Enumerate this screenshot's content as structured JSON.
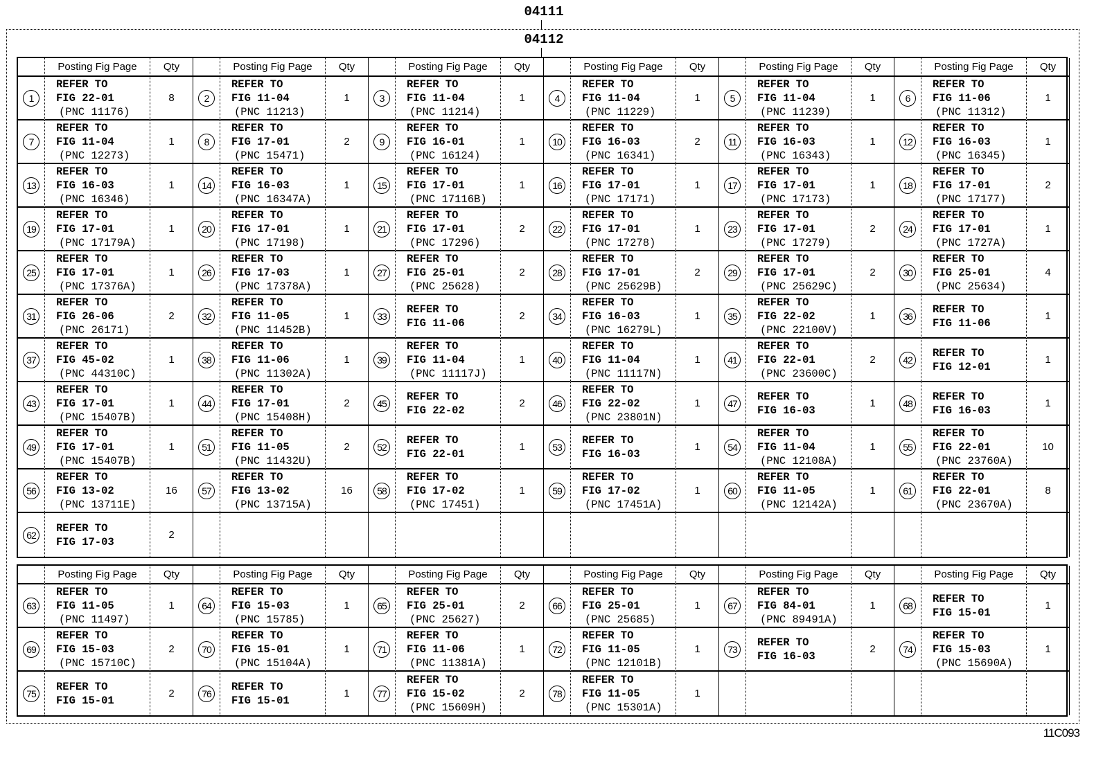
{
  "codes": {
    "outer": "04111",
    "inner": "04112"
  },
  "footer_id": "11C093",
  "header": {
    "posting": "Posting Fig Page",
    "qty": "Qty"
  },
  "refer_label": "REFER TO",
  "upper_table": [
    {
      "no": "1",
      "fig": "FIG 22-01",
      "pnc": "(PNC 11176)",
      "qty": "8"
    },
    {
      "no": "2",
      "fig": "FIG 11-04",
      "pnc": "(PNC 11213)",
      "qty": "1"
    },
    {
      "no": "3",
      "fig": "FIG 11-04",
      "pnc": "(PNC 11214)",
      "qty": "1"
    },
    {
      "no": "4",
      "fig": "FIG 11-04",
      "pnc": "(PNC 11229)",
      "qty": "1"
    },
    {
      "no": "5",
      "fig": "FIG 11-04",
      "pnc": "(PNC 11239)",
      "qty": "1"
    },
    {
      "no": "6",
      "fig": "FIG 11-06",
      "pnc": "(PNC 11312)",
      "qty": "1"
    },
    {
      "no": "7",
      "fig": "FIG 11-04",
      "pnc": "(PNC 12273)",
      "qty": "1"
    },
    {
      "no": "8",
      "fig": "FIG 17-01",
      "pnc": "(PNC 15471)",
      "qty": "2"
    },
    {
      "no": "9",
      "fig": "FIG 16-01",
      "pnc": "(PNC 16124)",
      "qty": "1"
    },
    {
      "no": "10",
      "fig": "FIG 16-03",
      "pnc": "(PNC 16341)",
      "qty": "2"
    },
    {
      "no": "11",
      "fig": "FIG 16-03",
      "pnc": "(PNC 16343)",
      "qty": "1"
    },
    {
      "no": "12",
      "fig": "FIG 16-03",
      "pnc": "(PNC 16345)",
      "qty": "1"
    },
    {
      "no": "13",
      "fig": "FIG 16-03",
      "pnc": "(PNC 16346)",
      "qty": "1"
    },
    {
      "no": "14",
      "fig": "FIG 16-03",
      "pnc": "(PNC 16347A)",
      "qty": "1"
    },
    {
      "no": "15",
      "fig": "FIG 17-01",
      "pnc": "(PNC 17116B)",
      "qty": "1"
    },
    {
      "no": "16",
      "fig": "FIG 17-01",
      "pnc": "(PNC 17171)",
      "qty": "1"
    },
    {
      "no": "17",
      "fig": "FIG 17-01",
      "pnc": "(PNC 17173)",
      "qty": "1"
    },
    {
      "no": "18",
      "fig": "FIG 17-01",
      "pnc": "(PNC 17177)",
      "qty": "2"
    },
    {
      "no": "19",
      "fig": "FIG 17-01",
      "pnc": "(PNC 17179A)",
      "qty": "1"
    },
    {
      "no": "20",
      "fig": "FIG 17-01",
      "pnc": "(PNC 17198)",
      "qty": "1"
    },
    {
      "no": "21",
      "fig": "FIG 17-01",
      "pnc": "(PNC 17296)",
      "qty": "2"
    },
    {
      "no": "22",
      "fig": "FIG 17-01",
      "pnc": "(PNC 17278)",
      "qty": "1"
    },
    {
      "no": "23",
      "fig": "FIG 17-01",
      "pnc": "(PNC 17279)",
      "qty": "2"
    },
    {
      "no": "24",
      "fig": "FIG 17-01",
      "pnc": "(PNC 1727A)",
      "qty": "1"
    },
    {
      "no": "25",
      "fig": "FIG 17-01",
      "pnc": "(PNC 17376A)",
      "qty": "1"
    },
    {
      "no": "26",
      "fig": "FIG 17-03",
      "pnc": "(PNC 17378A)",
      "qty": "1"
    },
    {
      "no": "27",
      "fig": "FIG 25-01",
      "pnc": "(PNC 25628)",
      "qty": "2"
    },
    {
      "no": "28",
      "fig": "FIG 17-01",
      "pnc": "(PNC 25629B)",
      "qty": "2"
    },
    {
      "no": "29",
      "fig": "FIG 17-01",
      "pnc": "(PNC 25629C)",
      "qty": "2"
    },
    {
      "no": "30",
      "fig": "FIG 25-01",
      "pnc": "(PNC 25634)",
      "qty": "4"
    },
    {
      "no": "31",
      "fig": "FIG 26-06",
      "pnc": "(PNC 26171)",
      "qty": "2"
    },
    {
      "no": "32",
      "fig": "FIG 11-05",
      "pnc": "(PNC 11452B)",
      "qty": "1"
    },
    {
      "no": "33",
      "fig": "FIG 11-06",
      "pnc": "",
      "qty": "2"
    },
    {
      "no": "34",
      "fig": "FIG 16-03",
      "pnc": "(PNC 16279L)",
      "qty": "1"
    },
    {
      "no": "35",
      "fig": "FIG 22-02",
      "pnc": "(PNC 22100V)",
      "qty": "1"
    },
    {
      "no": "36",
      "fig": "FIG 11-06",
      "pnc": "",
      "qty": "1"
    },
    {
      "no": "37",
      "fig": "FIG 45-02",
      "pnc": "(PNC 44310C)",
      "qty": "1"
    },
    {
      "no": "38",
      "fig": "FIG 11-06",
      "pnc": "(PNC 11302A)",
      "qty": "1"
    },
    {
      "no": "39",
      "fig": "FIG 11-04",
      "pnc": "(PNC 11117J)",
      "qty": "1"
    },
    {
      "no": "40",
      "fig": "FIG 11-04",
      "pnc": "(PNC 11117N)",
      "qty": "1"
    },
    {
      "no": "41",
      "fig": "FIG 22-01",
      "pnc": "(PNC 23600C)",
      "qty": "2"
    },
    {
      "no": "42",
      "fig": "FIG 12-01",
      "pnc": "",
      "qty": "1"
    },
    {
      "no": "43",
      "fig": "FIG 17-01",
      "pnc": "(PNC 15407B)",
      "qty": "1"
    },
    {
      "no": "44",
      "fig": "FIG 17-01",
      "pnc": "(PNC 15408H)",
      "qty": "2"
    },
    {
      "no": "45",
      "fig": "FIG 22-02",
      "pnc": "",
      "qty": "2"
    },
    {
      "no": "46",
      "fig": "FIG 22-02",
      "pnc": "(PNC 23801N)",
      "qty": "1"
    },
    {
      "no": "47",
      "fig": "FIG 16-03",
      "pnc": "",
      "qty": "1"
    },
    {
      "no": "48",
      "fig": "FIG 16-03",
      "pnc": "",
      "qty": "1"
    },
    {
      "no": "49",
      "fig": "FIG 17-01",
      "pnc": "(PNC 15407B)",
      "qty": "1"
    },
    {
      "no": "51",
      "fig": "FIG 11-05",
      "pnc": "(PNC 11432U)",
      "qty": "2"
    },
    {
      "no": "52",
      "fig": "FIG 22-01",
      "pnc": "",
      "qty": "1"
    },
    {
      "no": "53",
      "fig": "FIG 16-03",
      "pnc": "",
      "qty": "1"
    },
    {
      "no": "54",
      "fig": "FIG 11-04",
      "pnc": "(PNC 12108A)",
      "qty": "1"
    },
    {
      "no": "55",
      "fig": "FIG 22-01",
      "pnc": "(PNC 23760A)",
      "qty": "10"
    },
    {
      "no": "56",
      "fig": "FIG 13-02",
      "pnc": "(PNC 13711E)",
      "qty": "16"
    },
    {
      "no": "57",
      "fig": "FIG 13-02",
      "pnc": "(PNC 13715A)",
      "qty": "16"
    },
    {
      "no": "58",
      "fig": "FIG 17-02",
      "pnc": "(PNC 17451)",
      "qty": "1"
    },
    {
      "no": "59",
      "fig": "FIG 17-02",
      "pnc": "(PNC 17451A)",
      "qty": "1"
    },
    {
      "no": "60",
      "fig": "FIG 11-05",
      "pnc": "(PNC 12142A)",
      "qty": "1"
    },
    {
      "no": "61",
      "fig": "FIG 22-01",
      "pnc": "(PNC 23670A)",
      "qty": "8"
    },
    {
      "no": "62",
      "fig": "FIG 17-03",
      "pnc": "",
      "qty": "2"
    }
  ],
  "lower_table": [
    {
      "no": "63",
      "fig": "FIG 11-05",
      "pnc": "(PNC 11497)",
      "qty": "1"
    },
    {
      "no": "64",
      "fig": "FIG 15-03",
      "pnc": "(PNC 15785)",
      "qty": "1"
    },
    {
      "no": "65",
      "fig": "FIG 25-01",
      "pnc": "(PNC 25627)",
      "qty": "2"
    },
    {
      "no": "66",
      "fig": "FIG 25-01",
      "pnc": "(PNC 25685)",
      "qty": "1"
    },
    {
      "no": "67",
      "fig": "FIG 84-01",
      "pnc": "(PNC 89491A)",
      "qty": "1"
    },
    {
      "no": "68",
      "fig": "FIG 15-01",
      "pnc": "",
      "qty": "1"
    },
    {
      "no": "69",
      "fig": "FIG 15-03",
      "pnc": "(PNC 15710C)",
      "qty": "2"
    },
    {
      "no": "70",
      "fig": "FIG 15-01",
      "pnc": "(PNC 15104A)",
      "qty": "1"
    },
    {
      "no": "71",
      "fig": "FIG 11-06",
      "pnc": "(PNC 11381A)",
      "qty": "1"
    },
    {
      "no": "72",
      "fig": "FIG 11-05",
      "pnc": "(PNC 12101B)",
      "qty": "1"
    },
    {
      "no": "73",
      "fig": "FIG 16-03",
      "pnc": "",
      "qty": "2"
    },
    {
      "no": "74",
      "fig": "FIG 15-03",
      "pnc": "(PNC 15690A)",
      "qty": "1"
    },
    {
      "no": "75",
      "fig": "FIG 15-01",
      "pnc": "",
      "qty": "2"
    },
    {
      "no": "76",
      "fig": "FIG 15-01",
      "pnc": "",
      "qty": "1"
    },
    {
      "no": "77",
      "fig": "FIG 15-02",
      "pnc": "(PNC 15609H)",
      "qty": "2"
    },
    {
      "no": "78",
      "fig": "FIG 11-05",
      "pnc": "(PNC 15301A)",
      "qty": "1"
    }
  ]
}
